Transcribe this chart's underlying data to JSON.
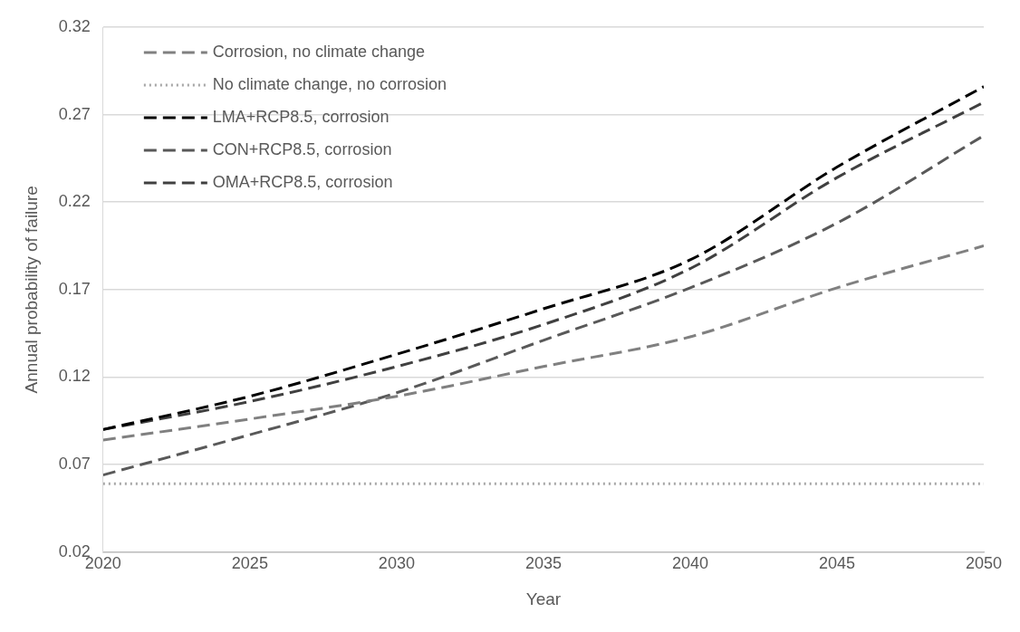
{
  "chart_data": {
    "type": "line",
    "xlabel": "Year",
    "ylabel": "Annual probability of failure",
    "x": [
      2020,
      2025,
      2030,
      2035,
      2040,
      2045,
      2050
    ],
    "series": [
      {
        "name": "Corrosion, no climate change",
        "color": "#808080",
        "line_style": "dashed",
        "values": [
          0.084,
          0.096,
          0.109,
          0.126,
          0.143,
          0.171,
          0.195
        ]
      },
      {
        "name": "No climate change, no corrosion",
        "color": "#a6a6a6",
        "line_style": "dotted",
        "values": [
          0.059,
          0.059,
          0.059,
          0.059,
          0.059,
          0.059,
          0.059
        ]
      },
      {
        "name": "LMA+RCP8.5, corrosion",
        "color": "#000000",
        "line_style": "dashed",
        "values": [
          0.09,
          0.109,
          0.133,
          0.159,
          0.187,
          0.24,
          0.286
        ]
      },
      {
        "name": "CON+RCP8.5, corrosion",
        "color": "#595959",
        "line_style": "dashed",
        "values": [
          0.064,
          0.087,
          0.111,
          0.141,
          0.171,
          0.208,
          0.258
        ]
      },
      {
        "name": "OMA+RCP8.5, corrosion",
        "color": "#404040",
        "line_style": "dashed",
        "values": [
          0.09,
          0.106,
          0.126,
          0.15,
          0.182,
          0.234,
          0.277
        ]
      }
    ],
    "xlim": [
      2020,
      2050
    ],
    "xticks": [
      2020,
      2025,
      2030,
      2035,
      2040,
      2045,
      2050
    ],
    "ylim": [
      0.02,
      0.32
    ],
    "yticks": [
      0.02,
      0.07,
      0.12,
      0.17,
      0.22,
      0.27,
      0.32
    ],
    "grid": "y",
    "legend": "top left",
    "marker": "none"
  }
}
